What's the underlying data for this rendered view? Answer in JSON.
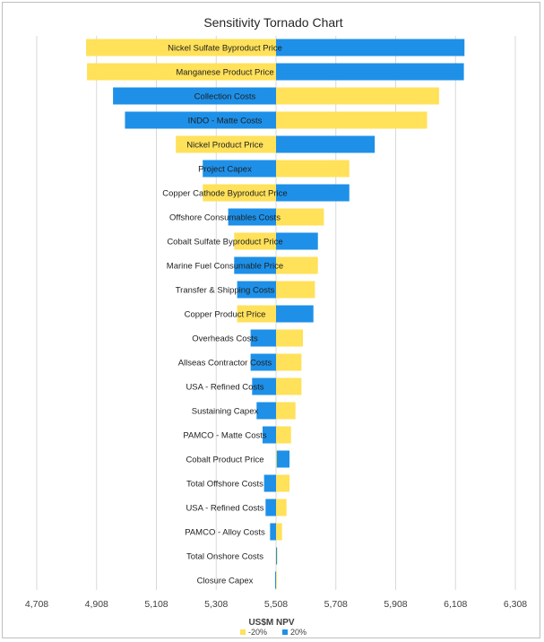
{
  "chart_data": {
    "type": "bar",
    "orientation": "horizontal-tornado",
    "title": "Sensitivity Tornado Chart",
    "xlabel": "US$M NPV",
    "base": 5508,
    "xlim": [
      4708,
      6308
    ],
    "xticks": [
      "4,708",
      "4,908",
      "5,108",
      "5,308",
      "5,508",
      "5,708",
      "5,908",
      "6,108",
      "6,308"
    ],
    "grid": true,
    "legend_position": "bottom",
    "categories": [
      "Nickel Sulfate Byproduct Price",
      "Manganese Product Price",
      "Collection Costs",
      "INDO - Matte Costs",
      "Nickel Product Price",
      "Project Capex",
      "Copper Cathode Byproduct Price",
      "Offshore Consumables Costs",
      "Cobalt Sulfate Byproduct Price",
      "Marine Fuel Consumable Price",
      "Transfer & Shipping Costs",
      "Copper Product Price",
      "Overheads Costs",
      "Allseas Contractor Costs",
      "USA - Refined Costs",
      "Sustaining Capex",
      "PAMCO - Matte Costs",
      "Cobalt Product Price",
      "Total Offshore Costs",
      "USA - Refined Costs",
      "PAMCO - Alloy Costs",
      "Total Onshore Costs",
      "Closure Capex"
    ],
    "series": [
      {
        "name": "-20%",
        "color": "#FFE15A",
        "values": [
          4873,
          4876,
          6053,
          6013,
          5173,
          5753,
          5263,
          5668,
          5368,
          5648,
          5638,
          5378,
          5598,
          5593,
          5593,
          5573,
          5558,
          5508,
          5553,
          5543,
          5528,
          5513,
          5508
        ]
      },
      {
        "name": "20%",
        "color": "#1E90E8",
        "values": [
          6138,
          6136,
          4963,
          5003,
          5838,
          5263,
          5753,
          5348,
          5648,
          5368,
          5378,
          5633,
          5423,
          5423,
          5428,
          5443,
          5463,
          5553,
          5468,
          5473,
          5488,
          5511,
          5505
        ]
      }
    ]
  }
}
